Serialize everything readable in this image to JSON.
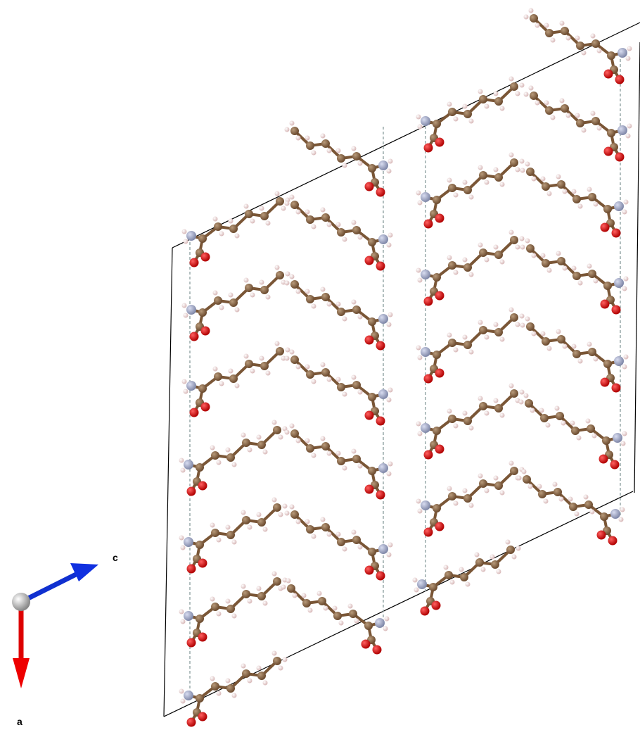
{
  "axis_labels": {
    "c": "c",
    "a": "a"
  }
}
